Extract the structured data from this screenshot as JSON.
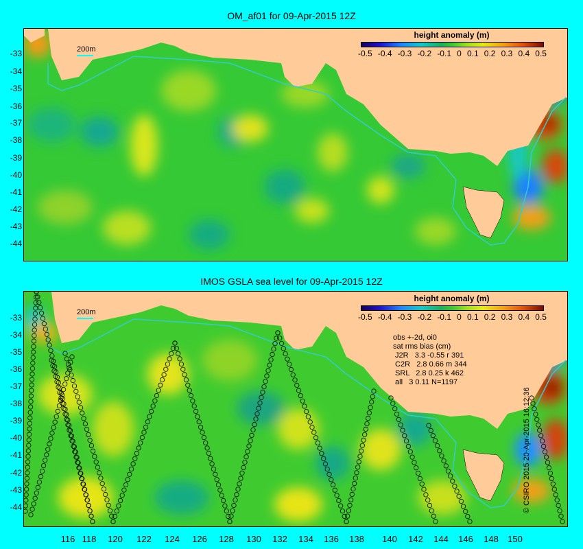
{
  "top_panel": {
    "title": "OM_af01 for 09-Apr-2015 12Z",
    "scale_label": "200m",
    "legend_title": "height anomaly (m)",
    "legend_ticks": [
      "-0.5",
      "-0.4",
      "-0.3",
      "-0.2",
      "-0.1",
      "0",
      "0.1",
      "0.2",
      "0.3",
      "0.4",
      "0.5"
    ],
    "y_ticks": [
      "-33",
      "-34",
      "-35",
      "-36",
      "-37",
      "-38",
      "-39",
      "-40",
      "-41",
      "-42",
      "-43",
      "-44"
    ]
  },
  "bottom_panel": {
    "title": "IMOS GSLA sea level  for 09-Apr-2015 12Z",
    "scale_label": "200m",
    "legend_title": "height anomaly (m)",
    "legend_ticks": [
      "-0.5",
      "-0.4",
      "-0.3",
      "-0.2",
      "-0.1",
      "0",
      "0.1",
      "0.2",
      "0.3",
      "0.4",
      "0.5"
    ],
    "y_ticks": [
      "-33",
      "-34",
      "-35",
      "-36",
      "-37",
      "-38",
      "-39",
      "-40",
      "-41",
      "-42",
      "-43",
      "-44"
    ],
    "x_ticks": [
      "116",
      "118",
      "120",
      "122",
      "124",
      "126",
      "128",
      "130",
      "132",
      "134",
      "136",
      "138",
      "140",
      "142",
      "144",
      "146",
      "148",
      "150"
    ],
    "stats": {
      "line1": "obs +-2d, oi0",
      "line2": "sat rms bias (cm)",
      "line3": " J2R   3.3 -0.55 r 391",
      "line4": " C2R   2.8 0.66 m 344",
      "line5": " SRL   2.8 0.25 k 462",
      "line6": " all   3 0.11 N=1197"
    }
  },
  "credit": "© CSIRO 2015   20-Apr-2015 16:12:36",
  "colors": {
    "background": "#00ffff",
    "land": "#ffcc99",
    "ocean_base": "#33cc33",
    "isobath": "#33cccc"
  }
}
